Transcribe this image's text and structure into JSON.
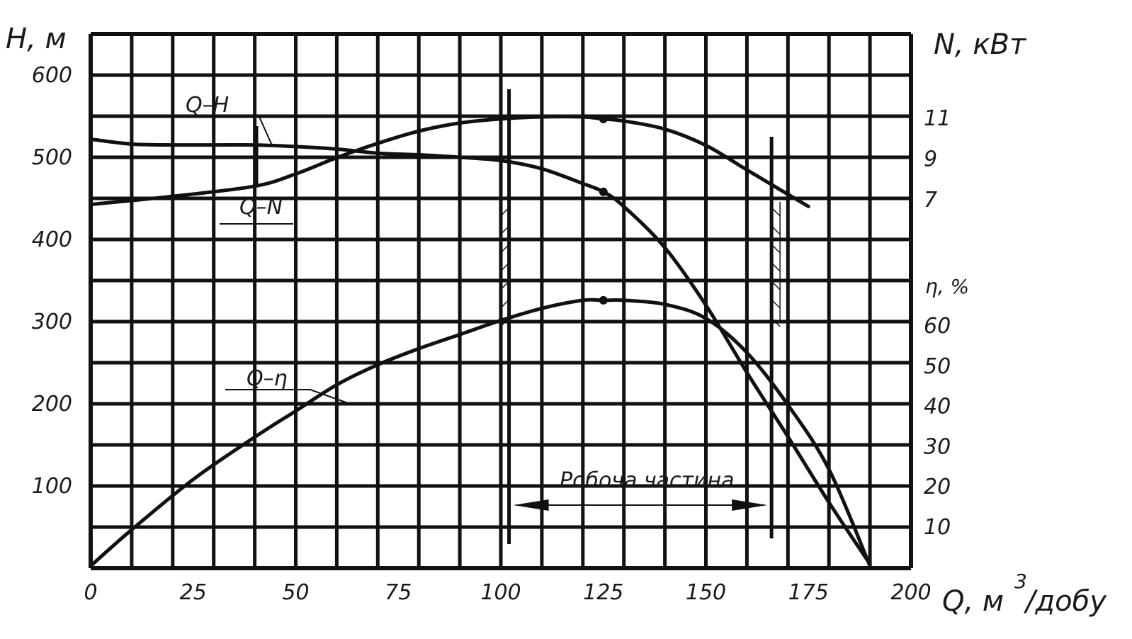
{
  "chart_data": {
    "type": "line",
    "x_axis": {
      "label": "Q, м",
      "superscript": "3",
      "unit_suffix": "/добу",
      "ticks": [
        "0",
        "25",
        "50",
        "75",
        "100",
        "125",
        "150",
        "175",
        "200"
      ],
      "range": [
        0,
        200
      ]
    },
    "left_axis": {
      "label": "H, м",
      "ticks": [
        "100",
        "200",
        "300",
        "400",
        "500",
        "600"
      ],
      "range": [
        0,
        650
      ]
    },
    "right_axis_power": {
      "label": "N, кВт",
      "ticks": [
        "7",
        "9",
        "11"
      ]
    },
    "right_axis_eff": {
      "label": "η, %",
      "ticks": [
        "10",
        "20",
        "30",
        "40",
        "50",
        "60"
      ]
    },
    "series": [
      {
        "name": "Q–H",
        "unit": "м",
        "x": [
          0,
          10,
          20,
          30,
          40,
          50,
          60,
          70,
          80,
          90,
          100,
          110,
          120,
          125,
          130,
          140,
          150,
          160,
          170,
          180,
          190
        ],
        "y": [
          522,
          516,
          515,
          515,
          515,
          513,
          510,
          505,
          503,
          500,
          496,
          486,
          468,
          458,
          440,
          390,
          320,
          238,
          160,
          80,
          5
        ]
      },
      {
        "name": "Q–N",
        "unit": "кВт",
        "x": [
          0,
          20,
          40,
          50,
          60,
          70,
          80,
          90,
          100,
          110,
          120,
          125,
          130,
          140,
          150,
          160,
          170,
          175
        ],
        "y": [
          6.7,
          7.1,
          7.6,
          8.2,
          9.0,
          9.7,
          10.3,
          10.7,
          10.9,
          11.0,
          11.0,
          10.9,
          10.8,
          10.4,
          9.6,
          8.4,
          7.2,
          6.6
        ]
      },
      {
        "name": "Q–η",
        "unit": "%",
        "x": [
          0,
          10,
          25,
          40,
          50,
          60,
          70,
          80,
          90,
          100,
          110,
          120,
          125,
          130,
          140,
          150,
          160,
          170,
          180,
          190
        ],
        "y": [
          0,
          9,
          21.5,
          32,
          38.5,
          45,
          50,
          54,
          57.5,
          61,
          64,
          66,
          66,
          66,
          65,
          61.5,
          53,
          40,
          24,
          0
        ]
      }
    ],
    "operating_points": [
      {
        "series": "Q–H",
        "x": 125,
        "y": 458
      },
      {
        "series": "Q–N",
        "x": 125,
        "y": 10.9
      },
      {
        "series": "Q–η",
        "x": 125,
        "y": 66
      }
    ],
    "working_zone": {
      "label": "Робоча частина",
      "x_start": 102,
      "x_end": 166
    },
    "grid": true
  }
}
